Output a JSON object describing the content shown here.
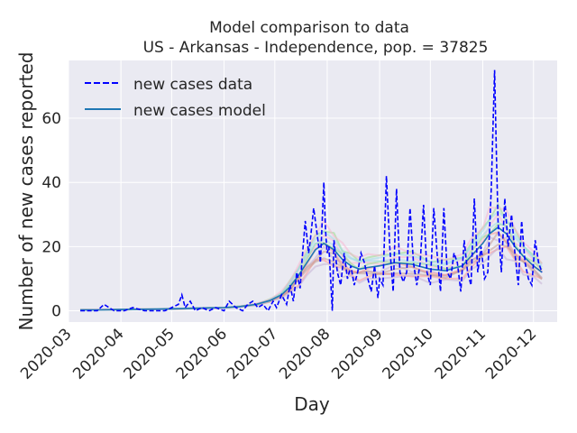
{
  "chart_data": {
    "type": "line",
    "title": "Model comparison to data",
    "subtitle": "US - Arkansas - Independence, pop. = 37825",
    "xlabel": "Day",
    "ylabel": "Number of new cases reported",
    "x_range": [
      "2020-03-01",
      "2020-12-15"
    ],
    "ylim": [
      -3.5,
      78
    ],
    "x_ticks": [
      "2020-03",
      "2020-04",
      "2020-05",
      "2020-06",
      "2020-07",
      "2020-08",
      "2020-09",
      "2020-10",
      "2020-11",
      "2020-12"
    ],
    "y_ticks": [
      0,
      20,
      40,
      60
    ],
    "grid": true,
    "legend_position": "top-left",
    "colors": {
      "plot_background": "#eaeaf2",
      "grid": "#ffffff",
      "data_line": "#0000ff",
      "model_line": "#1f77b4",
      "ensemble": [
        "#ff9896",
        "#98df8a",
        "#c5b0d5",
        "#f7b6d2",
        "#c49c94",
        "#9edae5"
      ]
    },
    "series": [
      {
        "name": "new cases data",
        "style": "dashed",
        "x": [
          "2020-03-08",
          "2020-03-15",
          "2020-03-18",
          "2020-03-22",
          "2020-03-28",
          "2020-04-03",
          "2020-04-08",
          "2020-04-15",
          "2020-04-20",
          "2020-04-27",
          "2020-05-01",
          "2020-05-05",
          "2020-05-07",
          "2020-05-09",
          "2020-05-12",
          "2020-05-15",
          "2020-05-19",
          "2020-05-23",
          "2020-05-27",
          "2020-06-01",
          "2020-06-04",
          "2020-06-08",
          "2020-06-12",
          "2020-06-15",
          "2020-06-18",
          "2020-06-21",
          "2020-06-24",
          "2020-06-27",
          "2020-06-30",
          "2020-07-02",
          "2020-07-05",
          "2020-07-08",
          "2020-07-10",
          "2020-07-12",
          "2020-07-14",
          "2020-07-16",
          "2020-07-17",
          "2020-07-19",
          "2020-07-21",
          "2020-07-22",
          "2020-07-24",
          "2020-07-25",
          "2020-07-27",
          "2020-07-28",
          "2020-07-30",
          "2020-07-31",
          "2020-08-01",
          "2020-08-02",
          "2020-08-04",
          "2020-08-05",
          "2020-08-07",
          "2020-08-09",
          "2020-08-11",
          "2020-08-13",
          "2020-08-15",
          "2020-08-17",
          "2020-08-19",
          "2020-08-21",
          "2020-08-23",
          "2020-08-25",
          "2020-08-27",
          "2020-08-29",
          "2020-08-31",
          "2020-09-01",
          "2020-09-03",
          "2020-09-05",
          "2020-09-07",
          "2020-09-09",
          "2020-09-11",
          "2020-09-13",
          "2020-09-15",
          "2020-09-17",
          "2020-09-19",
          "2020-09-21",
          "2020-09-23",
          "2020-09-25",
          "2020-09-27",
          "2020-09-29",
          "2020-10-01",
          "2020-10-03",
          "2020-10-05",
          "2020-10-07",
          "2020-10-09",
          "2020-10-11",
          "2020-10-13",
          "2020-10-15",
          "2020-10-17",
          "2020-10-19",
          "2020-10-21",
          "2020-10-23",
          "2020-10-25",
          "2020-10-27",
          "2020-10-29",
          "2020-10-31",
          "2020-11-02",
          "2020-11-04",
          "2020-11-06",
          "2020-11-08",
          "2020-11-09",
          "2020-11-10",
          "2020-11-12",
          "2020-11-14",
          "2020-11-16",
          "2020-11-18",
          "2020-11-20",
          "2020-11-22",
          "2020-11-24",
          "2020-11-26",
          "2020-11-28",
          "2020-11-30",
          "2020-12-02",
          "2020-12-04",
          "2020-12-06"
        ],
        "values": [
          0,
          0,
          0,
          2,
          0,
          0,
          1,
          0,
          0,
          0,
          1,
          2,
          5,
          1,
          3,
          0,
          1,
          0,
          1,
          0,
          3,
          1,
          0,
          2,
          3,
          1,
          2,
          0,
          3,
          1,
          5,
          2,
          8,
          3,
          12,
          7,
          15,
          28,
          18,
          22,
          32,
          28,
          20,
          15,
          40,
          25,
          18,
          20,
          0,
          22,
          12,
          8,
          18,
          10,
          14,
          8,
          12,
          18,
          15,
          10,
          6,
          14,
          4,
          10,
          8,
          42,
          20,
          6,
          38,
          12,
          9,
          12,
          32,
          15,
          8,
          15,
          33,
          12,
          8,
          32,
          18,
          6,
          32,
          12,
          10,
          18,
          15,
          6,
          22,
          12,
          8,
          35,
          12,
          20,
          10,
          12,
          38,
          75,
          50,
          28,
          12,
          35,
          20,
          30,
          18,
          8,
          28,
          15,
          10,
          8,
          22,
          15,
          12
        ]
      },
      {
        "name": "new cases model",
        "style": "solid",
        "x": [
          "2020-03-08",
          "2020-03-20",
          "2020-04-01",
          "2020-04-15",
          "2020-05-01",
          "2020-05-15",
          "2020-06-01",
          "2020-06-10",
          "2020-06-20",
          "2020-06-28",
          "2020-07-05",
          "2020-07-10",
          "2020-07-15",
          "2020-07-20",
          "2020-07-25",
          "2020-07-30",
          "2020-08-05",
          "2020-08-10",
          "2020-08-15",
          "2020-08-20",
          "2020-08-25",
          "2020-09-01",
          "2020-09-10",
          "2020-09-20",
          "2020-10-01",
          "2020-10-10",
          "2020-10-20",
          "2020-10-25",
          "2020-11-01",
          "2020-11-05",
          "2020-11-10",
          "2020-11-15",
          "2020-11-20",
          "2020-11-25",
          "2020-12-01",
          "2020-12-06"
        ],
        "values": [
          0.3,
          0.3,
          0.4,
          0.5,
          0.6,
          0.8,
          1.0,
          1.3,
          2.0,
          3.2,
          5.0,
          7.5,
          11.0,
          15.0,
          19.0,
          21.0,
          19.0,
          16.0,
          14.0,
          13.0,
          13.5,
          14.0,
          15.0,
          14.5,
          13.0,
          12.5,
          14.0,
          17.0,
          21.0,
          24.0,
          26.0,
          24.0,
          20.0,
          17.0,
          14.0,
          12.0
        ]
      }
    ]
  }
}
